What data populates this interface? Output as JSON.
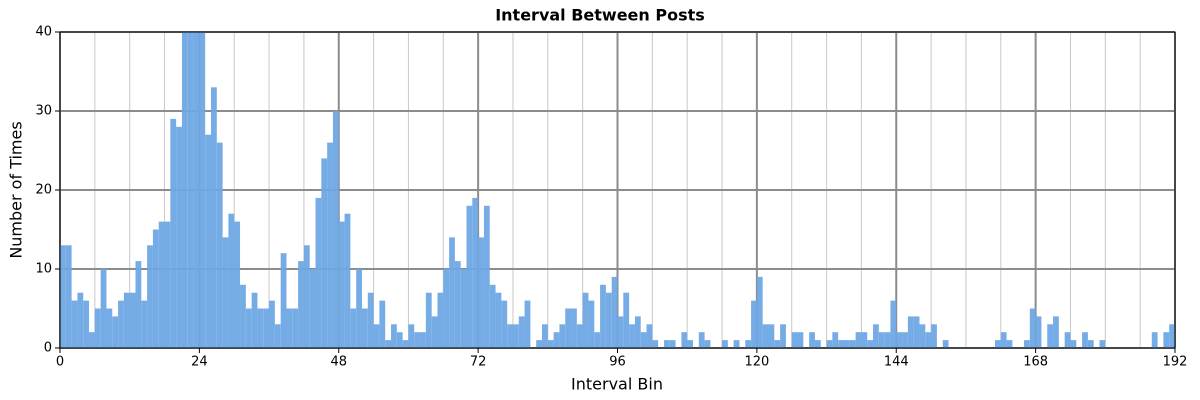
{
  "chart_data": {
    "type": "histogram",
    "title": "Interval Between Posts",
    "x_label": "Interval Bin",
    "y_label": "Number of Times",
    "color": "#6fa8e4",
    "bins": [
      0,
      1,
      2,
      3,
      4,
      5,
      6,
      7,
      8,
      9,
      10,
      11,
      12,
      13,
      14,
      15,
      16,
      17,
      18,
      19,
      20,
      21,
      22,
      23,
      24,
      25,
      26,
      27,
      28,
      29,
      30,
      31,
      32,
      33,
      34,
      35,
      36,
      37,
      38,
      39,
      40,
      41,
      42,
      43,
      44,
      45,
      46,
      47,
      48,
      49,
      50,
      51,
      52,
      53,
      54,
      55,
      56,
      57,
      58,
      59,
      60,
      61,
      62,
      63,
      64,
      65,
      66,
      67,
      68,
      69,
      70,
      71,
      72,
      73,
      74,
      75,
      76,
      77,
      78,
      79,
      80,
      81,
      82,
      83,
      84,
      85,
      86,
      87,
      88,
      89,
      90,
      91,
      92,
      93,
      94,
      95,
      96,
      97,
      98,
      99,
      100,
      101,
      102,
      103,
      104,
      105,
      106,
      107,
      108,
      109,
      110,
      111,
      112,
      113,
      114,
      115,
      116,
      117,
      118,
      119,
      120,
      121,
      122,
      123,
      124,
      125,
      126,
      127,
      128,
      129,
      130,
      131,
      132,
      133,
      134,
      135,
      136,
      137,
      138,
      139,
      140,
      141,
      142,
      143,
      144,
      145,
      146,
      147,
      148,
      149,
      150,
      151,
      152,
      153,
      154,
      155,
      156,
      157,
      158,
      159,
      160,
      161,
      162,
      163,
      164,
      165,
      166,
      167,
      168,
      169,
      170,
      171,
      172,
      173,
      174,
      175,
      176,
      177,
      178,
      179,
      180,
      181,
      182,
      183,
      184,
      185,
      186,
      187,
      188,
      189,
      190,
      191,
      192
    ],
    "values": [
      13,
      13,
      6,
      7,
      6,
      2,
      5,
      10,
      5,
      4,
      6,
      7,
      7,
      11,
      6,
      13,
      15,
      16,
      16,
      29,
      28,
      40,
      40,
      40,
      40,
      27,
      33,
      26,
      14,
      17,
      16,
      8,
      5,
      7,
      5,
      5,
      6,
      3,
      12,
      5,
      5,
      11,
      13,
      10,
      19,
      24,
      26,
      30,
      16,
      17,
      5,
      10,
      5,
      7,
      3,
      6,
      1,
      3,
      2,
      1,
      3,
      2,
      2,
      7,
      4,
      7,
      10,
      14,
      11,
      10,
      18,
      19,
      14,
      18,
      8,
      7,
      6,
      3,
      3,
      4,
      6,
      0,
      1,
      3,
      1,
      2,
      3,
      5,
      5,
      3,
      7,
      6,
      2,
      8,
      7,
      9,
      4,
      7,
      3,
      4,
      2,
      3,
      1,
      0,
      1,
      1,
      0,
      2,
      1,
      0,
      2,
      1,
      0,
      0,
      1,
      0,
      1,
      0,
      1,
      6,
      9,
      3,
      3,
      1,
      3,
      0,
      2,
      2,
      0,
      2,
      1,
      0,
      1,
      2,
      1,
      1,
      1,
      2,
      2,
      1,
      3,
      2,
      2,
      6,
      2,
      2,
      4,
      4,
      3,
      2,
      3,
      0,
      1,
      0,
      0,
      0,
      0,
      0,
      0,
      0,
      0,
      1,
      2,
      1,
      0,
      0,
      1,
      5,
      4,
      0,
      3,
      4,
      0,
      2,
      1,
      0,
      2,
      1,
      0,
      1,
      0,
      0,
      0,
      0,
      0,
      0,
      0,
      0,
      2,
      0,
      2,
      3
    ],
    "xlim": [
      0,
      192
    ],
    "xticks": [
      0,
      24,
      48,
      72,
      96,
      120,
      144,
      168,
      192
    ],
    "xminorticks": [
      6,
      12,
      18,
      30,
      36,
      42,
      54,
      60,
      66,
      78,
      84,
      90,
      102,
      108,
      114,
      126,
      132,
      138,
      150,
      156,
      162,
      174,
      180,
      186
    ],
    "ylim": [
      0,
      40
    ],
    "yticks": [
      0,
      10,
      20,
      30,
      40
    ],
    "grid": true
  }
}
